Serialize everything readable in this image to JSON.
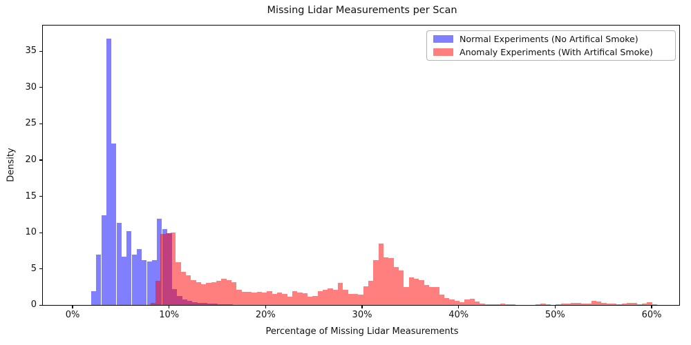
{
  "chart_data": {
    "type": "histogram",
    "title": "Missing Lidar Measurements per Scan",
    "xlabel": "Percentage of Missing Lidar Measurements",
    "ylabel": "Density",
    "x_tick_labels": [
      "0%",
      "10%",
      "20%",
      "30%",
      "40%",
      "50%",
      "60%"
    ],
    "x_tick_values": [
      0,
      10,
      20,
      30,
      40,
      50,
      60
    ],
    "y_tick_labels": [
      "0",
      "5",
      "10",
      "15",
      "20",
      "25",
      "30",
      "35"
    ],
    "y_tick_values": [
      0,
      5,
      10,
      15,
      20,
      25,
      30,
      35
    ],
    "xlim_pct": [
      -3.1,
      62.8
    ],
    "ylim_density": [
      0,
      38.5
    ],
    "bin_width_pct": 0.525,
    "grid": false,
    "legend_position": "upper right",
    "overlap_color": "#bf4080",
    "series": [
      {
        "name": "Normal Experiments (No Artifical Smoke)",
        "legend_color": "#7f7fff",
        "css_color": "#7f7fff",
        "start_pct": 1.85,
        "densities": [
          1.9,
          6.9,
          12.4,
          36.7,
          22.3,
          11.3,
          6.7,
          10.2,
          6.9,
          7.7,
          6.2,
          6.0,
          6.2,
          11.9,
          10.5,
          9.9,
          2.2,
          1.2,
          0.8,
          0.55,
          0.4,
          0.3,
          0.25,
          0.2,
          0.15,
          0.12,
          0.1,
          0.08
        ]
      },
      {
        "name": "Anomaly Experiments (With Artifical Smoke)",
        "legend_color": "#ff7f7f",
        "css_color": "rgba(255,0,0,0.5)",
        "start_pct": 8.0,
        "densities": [
          0.3,
          3.3,
          9.8,
          9.9,
          10.0,
          5.9,
          4.6,
          4.1,
          3.4,
          3.15,
          2.9,
          3.05,
          3.15,
          3.35,
          3.65,
          3.45,
          3.15,
          2.1,
          1.85,
          1.85,
          1.75,
          1.85,
          1.75,
          1.9,
          1.5,
          1.7,
          1.5,
          1.1,
          1.9,
          1.7,
          1.65,
          1.1,
          1.25,
          1.95,
          2.05,
          2.3,
          2.05,
          3.05,
          2.05,
          1.5,
          1.5,
          1.45,
          2.6,
          3.3,
          6.15,
          8.45,
          6.55,
          6.45,
          5.2,
          4.8,
          2.5,
          3.85,
          3.6,
          3.4,
          2.8,
          2.5,
          2.5,
          1.45,
          1.0,
          0.8,
          0.6,
          0.4,
          0.8,
          0.9,
          0.45,
          0.2,
          0.1,
          0.05,
          0.05,
          0.15,
          0.1,
          0.05,
          0,
          0,
          0,
          0,
          0.1,
          0.15,
          0.05,
          0,
          0.05,
          0.2,
          0.2,
          0.3,
          0.25,
          0.2,
          0.2,
          0.6,
          0.45,
          0.25,
          0.2,
          0.15,
          0.1,
          0.15,
          0.3,
          0.25,
          0.05,
          0.2,
          0.35,
          0.1
        ]
      }
    ]
  },
  "legend": {
    "entries": [
      {
        "label": "Normal Experiments (No Artifical Smoke)"
      },
      {
        "label": "Anomaly Experiments (With Artifical Smoke)"
      }
    ]
  }
}
